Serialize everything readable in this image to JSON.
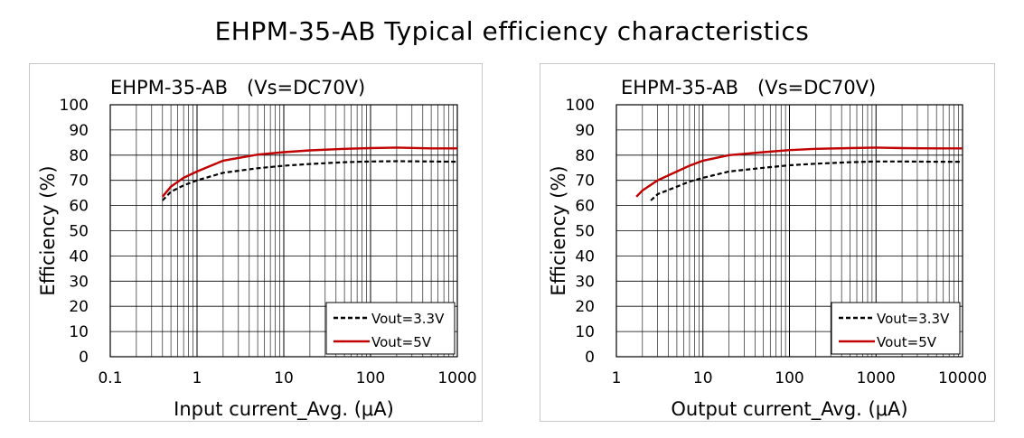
{
  "page_title": "EHPM-35-AB Typical efficiency characteristics",
  "colors": {
    "series_3v3": "#000000",
    "series_5v": "#c00000",
    "grid": "#000000",
    "border": "#c8c8c8"
  },
  "chart_data": [
    {
      "type": "line",
      "title": "EHPM-35-AB　(Vs=DC70V)",
      "xlabel": "Input current_Avg. (μA)",
      "ylabel": "Efficiency (%)",
      "xscale": "log",
      "xlim": [
        0.1,
        1000
      ],
      "ylim": [
        0,
        100
      ],
      "yticks": [
        "0",
        "10",
        "20",
        "30",
        "40",
        "50",
        "60",
        "70",
        "80",
        "90",
        "100"
      ],
      "xticks": [
        "0.1",
        "1",
        "10",
        "100",
        "1000"
      ],
      "grid": true,
      "legend_position": "bottom-right",
      "series": [
        {
          "name": "Vout=3.3V",
          "style": "dashed",
          "color": "#000000",
          "x": [
            0.4,
            0.5,
            0.7,
            1,
            2,
            5,
            10,
            20,
            50,
            100,
            200,
            500,
            1000
          ],
          "y": [
            62,
            65.5,
            68,
            70,
            73,
            74.8,
            75.8,
            76.5,
            77.2,
            77.5,
            77.6,
            77.5,
            77.4
          ]
        },
        {
          "name": "Vout=5V",
          "style": "solid",
          "color": "#c00000",
          "x": [
            0.4,
            0.5,
            0.7,
            1,
            2,
            5,
            10,
            20,
            50,
            100,
            200,
            500,
            1000
          ],
          "y": [
            63.5,
            67.5,
            71,
            73.5,
            77.8,
            80.2,
            81.2,
            81.9,
            82.5,
            82.8,
            83,
            82.7,
            82.7
          ]
        }
      ]
    },
    {
      "type": "line",
      "title": "EHPM-35-AB　(Vs=DC70V)",
      "xlabel": "Output current_Avg. (μA)",
      "ylabel": "Efficiency (%)",
      "xscale": "log",
      "xlim": [
        1,
        10000
      ],
      "ylim": [
        0,
        100
      ],
      "yticks": [
        "0",
        "10",
        "20",
        "30",
        "40",
        "50",
        "60",
        "70",
        "80",
        "90",
        "100"
      ],
      "xticks": [
        "1",
        "10",
        "100",
        "1000",
        "10000"
      ],
      "grid": true,
      "legend_position": "bottom-right",
      "series": [
        {
          "name": "Vout=3.3V",
          "style": "dashed",
          "color": "#000000",
          "x": [
            2.5,
            3,
            5,
            7,
            10,
            20,
            50,
            100,
            200,
            500,
            1000,
            2000,
            5000,
            10000
          ],
          "y": [
            62,
            64.5,
            67.5,
            69.5,
            71,
            73.5,
            75,
            76,
            76.6,
            77.2,
            77.5,
            77.5,
            77.4,
            77.4
          ]
        },
        {
          "name": "Vout=5V",
          "style": "solid",
          "color": "#c00000",
          "x": [
            1.7,
            2,
            3,
            5,
            7,
            10,
            20,
            50,
            100,
            200,
            500,
            1000,
            2000,
            5000,
            10000
          ],
          "y": [
            63.5,
            66,
            70,
            73.5,
            75.8,
            77.8,
            80,
            81.2,
            82,
            82.5,
            82.8,
            83,
            82.8,
            82.7,
            82.7
          ]
        }
      ]
    }
  ]
}
